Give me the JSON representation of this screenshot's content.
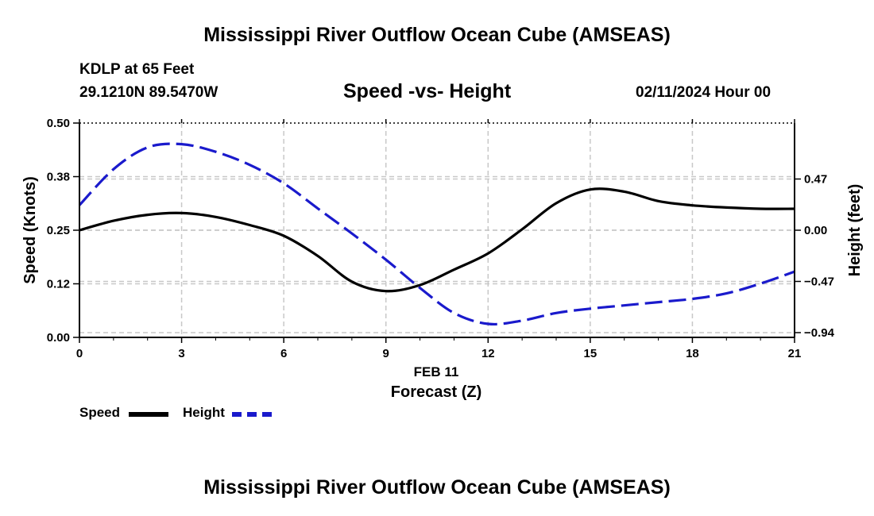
{
  "header": {
    "title_top": "Mississippi River Outflow Ocean Cube (AMSEAS)",
    "station": "KDLP at 65 Feet",
    "coords": "29.1210N  89.5470W",
    "plot_title": "Speed -vs- Height",
    "datetime": "02/11/2024 Hour 00",
    "title_bottom": "Mississippi River Outflow Ocean Cube (AMSEAS)"
  },
  "legend": {
    "speed_label": "Speed",
    "height_label": "Height"
  },
  "colors": {
    "speed": "#000000",
    "height": "#1a1acc",
    "grid": "#c8c8c8"
  },
  "chart_data": {
    "type": "line",
    "title": "Speed -vs- Height",
    "xlabel": "Forecast (Z)",
    "xlabel_date": "FEB 11",
    "ylabel_left": "Speed (Knots)",
    "ylabel_right": "Height (feet)",
    "xlim": [
      0,
      21
    ],
    "ylim_left": [
      0,
      0.5
    ],
    "ylim_right": [
      -0.94,
      0.94
    ],
    "x_ticks": [
      0,
      3,
      6,
      9,
      12,
      15,
      18,
      21
    ],
    "x_tick_labels": [
      "0",
      "3",
      "6",
      "9",
      "12",
      "15",
      "18",
      "21"
    ],
    "y_left_ticks": [
      0.0,
      0.125,
      0.25,
      0.375,
      0.5
    ],
    "y_left_tick_labels": [
      "0.00",
      "0.12",
      "0.25",
      "0.38",
      "0.50"
    ],
    "y_right_ticks": [
      -0.94,
      -0.47,
      0.0,
      0.47
    ],
    "y_right_tick_labels": [
      "−0.94",
      "−0.47",
      "0.00",
      "0.47"
    ],
    "grid": true,
    "series": [
      {
        "name": "Speed",
        "axis": "left",
        "style": "solid",
        "x": [
          0,
          1,
          2,
          3,
          4,
          5,
          6,
          7,
          8,
          9,
          10,
          11,
          12,
          13,
          14,
          15,
          16,
          17,
          18,
          19,
          20,
          21
        ],
        "values": [
          0.25,
          0.272,
          0.286,
          0.29,
          0.281,
          0.262,
          0.237,
          0.19,
          0.13,
          0.108,
          0.122,
          0.158,
          0.196,
          0.252,
          0.313,
          0.345,
          0.34,
          0.318,
          0.308,
          0.303,
          0.3,
          0.3
        ]
      },
      {
        "name": "Height",
        "axis": "right",
        "style": "dashed",
        "x": [
          0,
          1,
          2,
          3,
          4,
          5,
          6,
          7,
          8,
          9,
          10,
          11,
          12,
          13,
          14,
          15,
          16,
          17,
          18,
          19,
          20,
          21
        ],
        "values": [
          0.23,
          0.56,
          0.76,
          0.79,
          0.72,
          0.6,
          0.43,
          0.2,
          -0.03,
          -0.27,
          -0.53,
          -0.76,
          -0.86,
          -0.83,
          -0.76,
          -0.72,
          -0.69,
          -0.66,
          -0.63,
          -0.58,
          -0.49,
          -0.38
        ]
      }
    ]
  }
}
